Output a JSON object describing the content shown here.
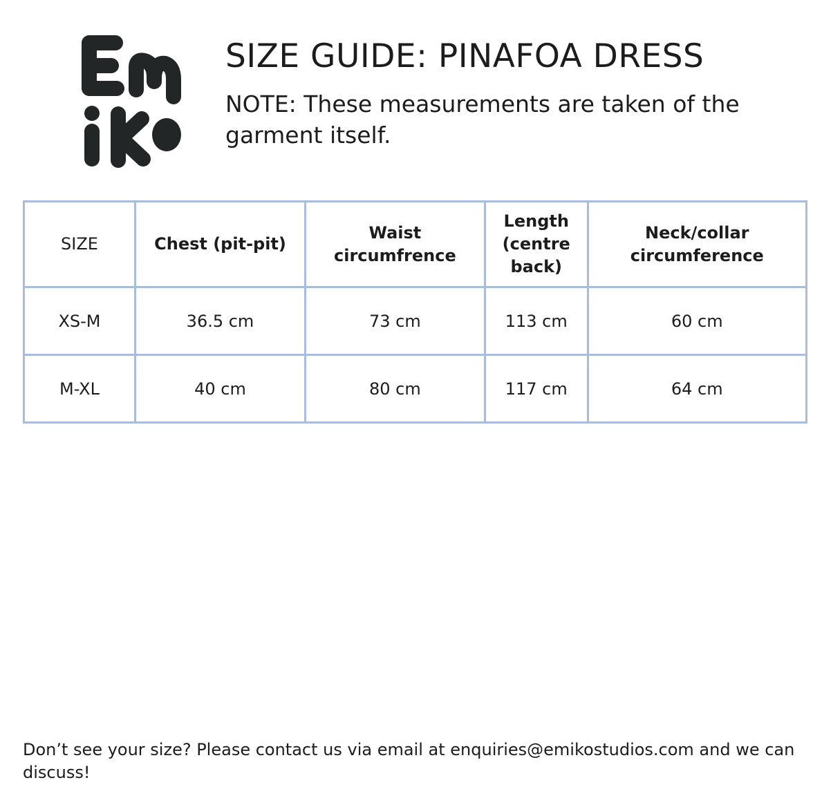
{
  "brand": {
    "logo_text": "Emiko",
    "logo_color": "#232626"
  },
  "header": {
    "title": "SIZE GUIDE: PINAFOA DRESS",
    "note": "NOTE: These measurements are taken of the garment itself."
  },
  "table": {
    "border_color": "#a9bcdc",
    "headers": [
      "SIZE",
      "Chest (pit-pit)",
      "Waist circumfrence",
      "Length (centre back)",
      "Neck/collar circumference"
    ],
    "rows": [
      [
        "XS-M",
        "36.5 cm",
        "73 cm",
        "113 cm",
        "60 cm"
      ],
      [
        "M-XL",
        "40 cm",
        "80 cm",
        "117 cm",
        "64 cm"
      ]
    ]
  },
  "footer": {
    "text": "Don’t see your size? Please contact us via email at enquiries@emikostudios.com and we can discuss!"
  }
}
